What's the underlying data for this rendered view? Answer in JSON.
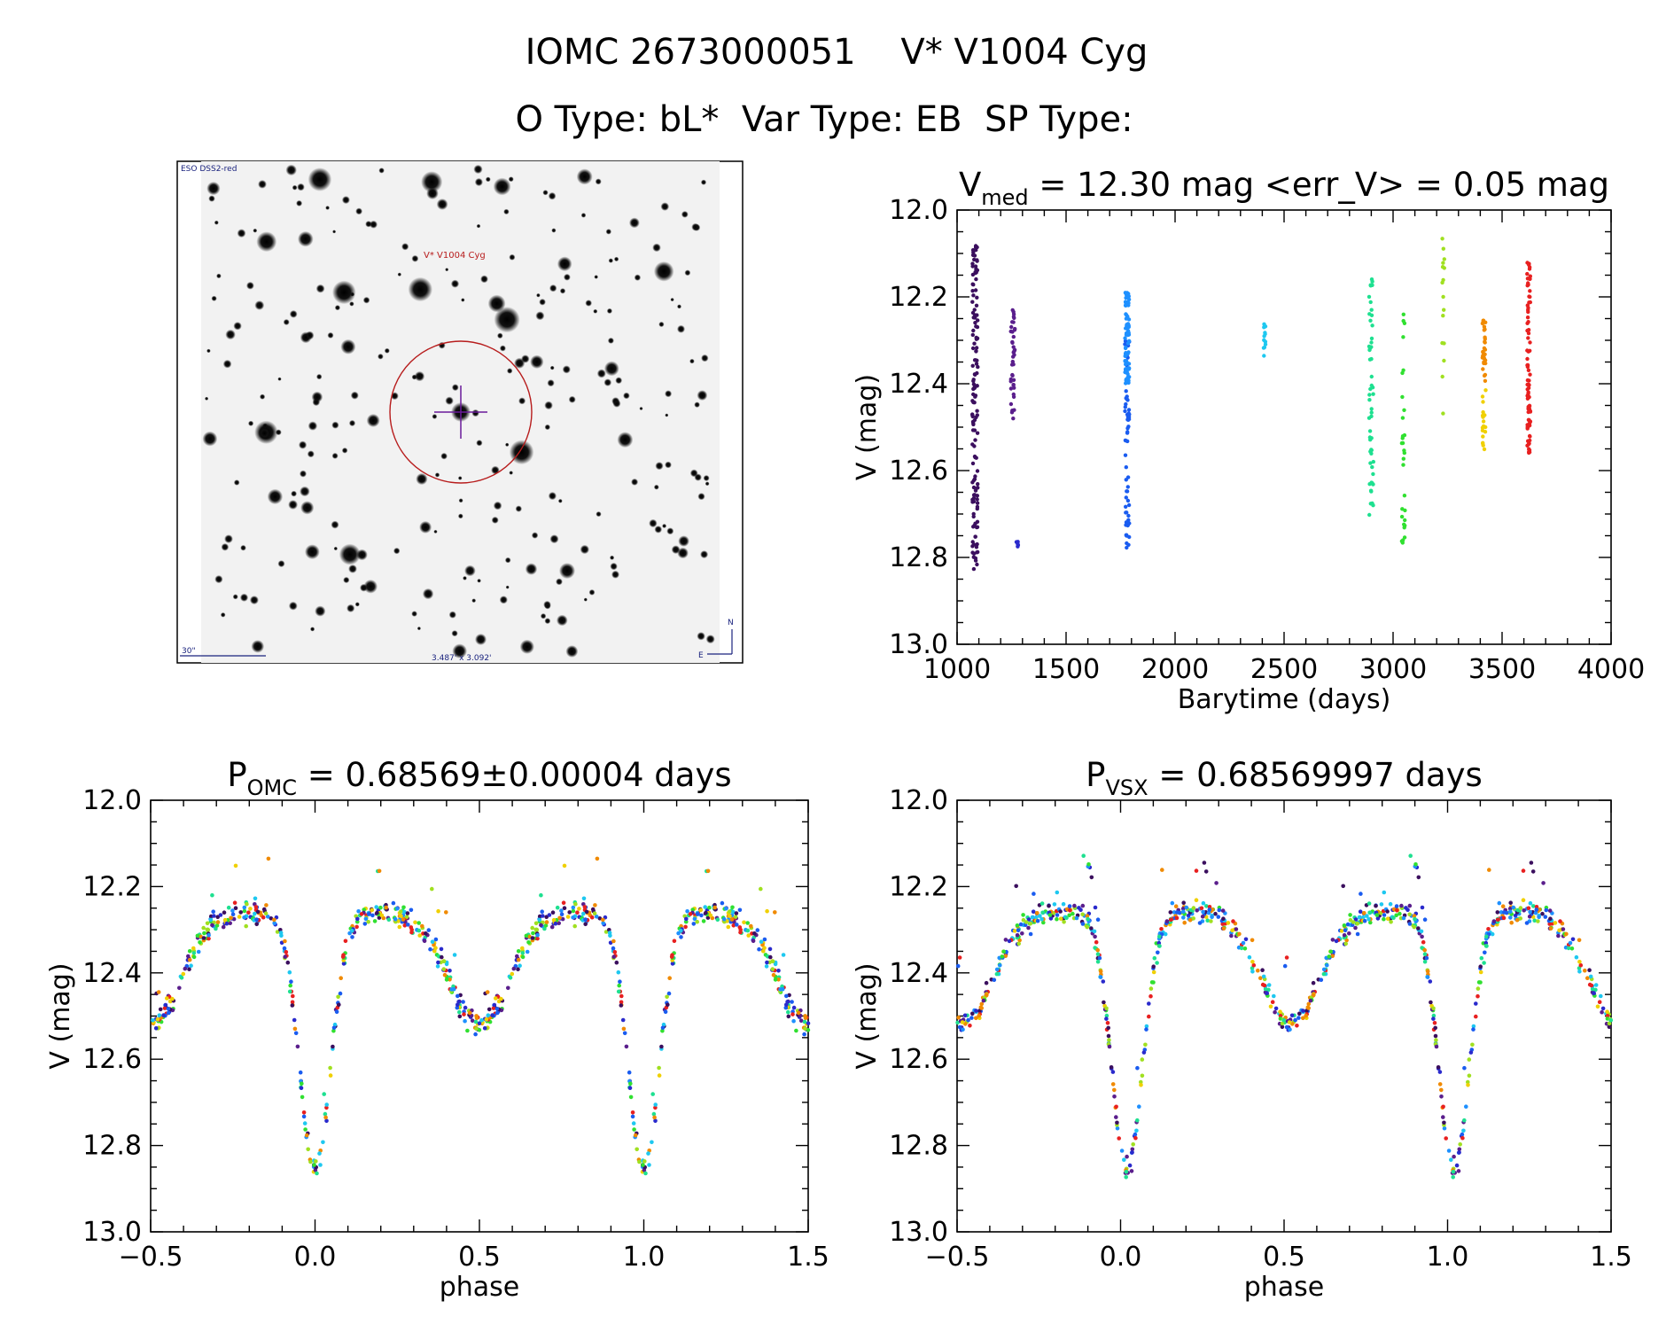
{
  "header": {
    "title_line1": "IOMC 2673000051    V* V1004 Cyg",
    "title_line2": "O Type: bL*  Var Type: EB  SP Type:"
  },
  "finder": {
    "survey_label": "ESO DSS2-red",
    "target_label": "V* V1004 Cyg",
    "scale_label": "30\"",
    "size_label": "3.487' x 3.092'",
    "north_label": "N",
    "east_label": "E"
  },
  "chart_data": [
    {
      "id": "lightcurve",
      "type": "scatter",
      "title_main": "V",
      "title_sub": "med",
      "title_rest": " = 12.30 mag <err_V> = 0.05 mag",
      "xlabel": "Barytime (days)",
      "ylabel": "V (mag)",
      "xlim": [
        1000,
        4000
      ],
      "ylim": [
        13.0,
        12.0
      ],
      "y_inverted": true,
      "xticks": [
        1000,
        1500,
        2000,
        2500,
        3000,
        3500,
        4000
      ],
      "yticks": [
        12.0,
        12.2,
        12.4,
        12.6,
        12.8,
        13.0
      ],
      "grid": false,
      "series": [
        {
          "color": "#3b0f5e",
          "x_range": [
            1070,
            1095
          ],
          "y_range": [
            12.08,
            12.83
          ],
          "n": 140
        },
        {
          "color": "#5a1e8c",
          "x_range": [
            1245,
            1265
          ],
          "y_range": [
            12.23,
            12.49
          ],
          "n": 40
        },
        {
          "color": "#2a2acc",
          "x_range": [
            1270,
            1280
          ],
          "y_range": [
            12.76,
            12.78
          ],
          "n": 6
        },
        {
          "color": "#1a5cf0",
          "x_range": [
            1770,
            1790
          ],
          "y_range": [
            12.3,
            12.82
          ],
          "n": 60
        },
        {
          "color": "#1e90ff",
          "x_range": [
            1770,
            1790
          ],
          "y_range": [
            12.19,
            12.4
          ],
          "n": 80
        },
        {
          "color": "#1ec8f0",
          "x_range": [
            2405,
            2415
          ],
          "y_range": [
            12.26,
            12.34
          ],
          "n": 12
        },
        {
          "color": "#1ee090",
          "x_range": [
            2890,
            2910
          ],
          "y_range": [
            12.15,
            12.71
          ],
          "n": 55
        },
        {
          "color": "#30e030",
          "x_range": [
            3040,
            3055
          ],
          "y_range": [
            12.23,
            12.84
          ],
          "n": 30
        },
        {
          "color": "#a0e020",
          "x_range": [
            3225,
            3235
          ],
          "y_range": [
            12.01,
            12.47
          ],
          "n": 16
        },
        {
          "color": "#f0d000",
          "x_range": [
            3410,
            3425
          ],
          "y_range": [
            12.4,
            12.56
          ],
          "n": 18
        },
        {
          "color": "#f08a00",
          "x_range": [
            3410,
            3425
          ],
          "y_range": [
            12.24,
            12.4
          ],
          "n": 30
        },
        {
          "color": "#e82020",
          "x_range": [
            3615,
            3630
          ],
          "y_range": [
            12.12,
            12.56
          ],
          "n": 80
        }
      ]
    },
    {
      "id": "phase_omc",
      "type": "scatter",
      "title_main": "P",
      "title_sub": "OMC",
      "title_rest": " = 0.68569±0.00004 days",
      "xlabel": "phase",
      "ylabel": "V (mag)",
      "xlim": [
        -0.5,
        1.5
      ],
      "ylim": [
        13.0,
        12.0
      ],
      "y_inverted": true,
      "xticks": [
        -0.5,
        0.0,
        0.5,
        1.0,
        1.5
      ],
      "xtick_labels": [
        "−0.5",
        "0.0",
        "0.5",
        "1.0",
        "1.5"
      ],
      "yticks": [
        12.0,
        12.2,
        12.4,
        12.6,
        12.8,
        13.0
      ],
      "grid": false,
      "curve": {
        "max_phase": 0.25,
        "max_mag": 12.22,
        "min1_phase": 0.0,
        "min1_mag": 12.82,
        "min2_phase": 0.5,
        "min2_mag": 12.48
      }
    },
    {
      "id": "phase_vsx",
      "type": "scatter",
      "title_main": "P",
      "title_sub": "VSX",
      "title_rest": " = 0.68569997 days",
      "xlabel": "phase",
      "ylabel": "V (mag)",
      "xlim": [
        -0.5,
        1.5
      ],
      "ylim": [
        13.0,
        12.0
      ],
      "y_inverted": true,
      "xticks": [
        -0.5,
        0.0,
        0.5,
        1.0,
        1.5
      ],
      "xtick_labels": [
        "−0.5",
        "0.0",
        "0.5",
        "1.0",
        "1.5"
      ],
      "yticks": [
        12.0,
        12.2,
        12.4,
        12.6,
        12.8,
        13.0
      ],
      "grid": false,
      "curve": {
        "max_phase": 0.25,
        "max_mag": 12.22,
        "min1_phase": 0.0,
        "min1_mag": 12.82,
        "min2_phase": 0.5,
        "min2_mag": 12.48
      }
    }
  ]
}
